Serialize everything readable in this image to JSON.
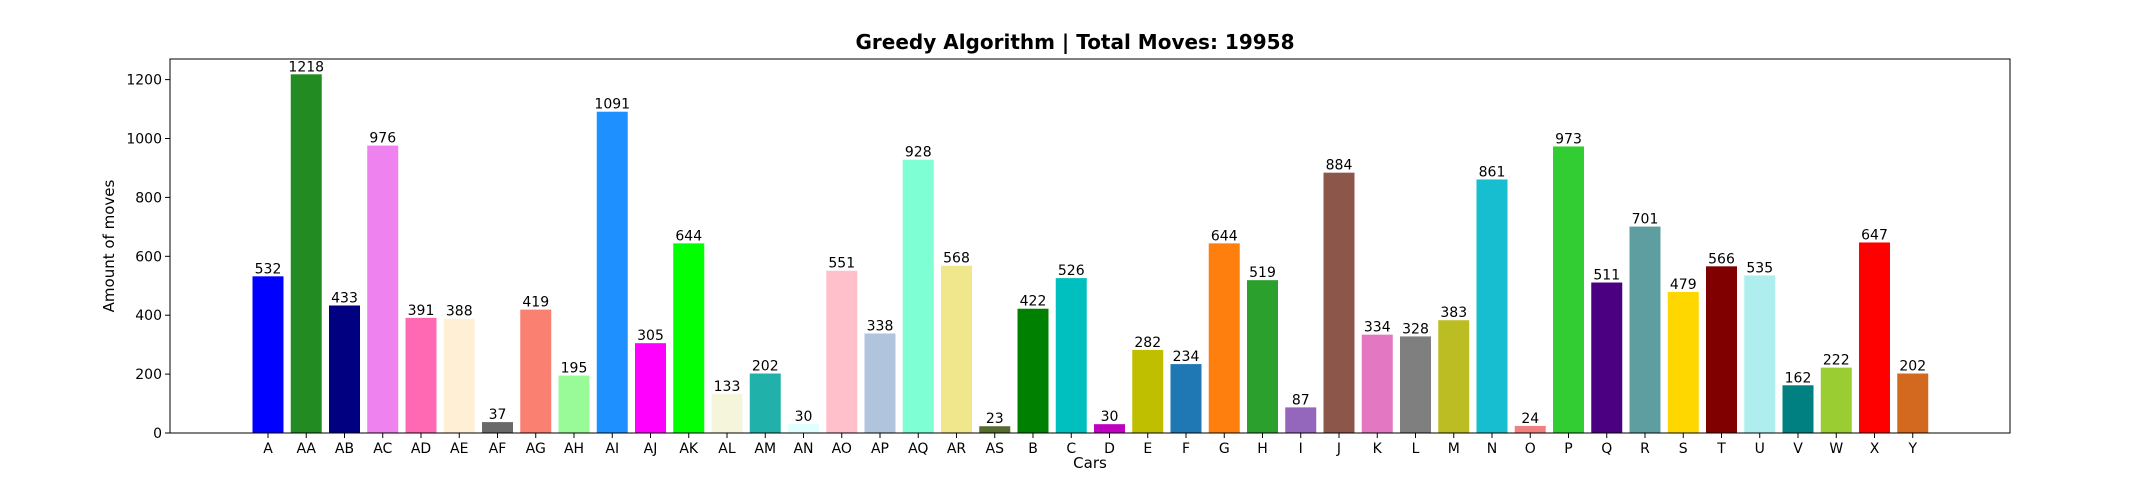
{
  "chart_data": {
    "type": "bar",
    "title": "Greedy Algorithm | Total Moves: 19958",
    "xlabel": "Cars",
    "ylabel": "Amount of moves",
    "ylim": [
      0,
      1270
    ],
    "yticks": [
      0,
      200,
      400,
      600,
      800,
      1000,
      1200
    ],
    "grid": false,
    "categories": [
      "A",
      "AA",
      "AB",
      "AC",
      "AD",
      "AE",
      "AF",
      "AG",
      "AH",
      "AI",
      "AJ",
      "AK",
      "AL",
      "AM",
      "AN",
      "AO",
      "AP",
      "AQ",
      "AR",
      "AS",
      "B",
      "C",
      "D",
      "E",
      "F",
      "G",
      "H",
      "I",
      "J",
      "K",
      "L",
      "M",
      "N",
      "O",
      "P",
      "Q",
      "R",
      "S",
      "T",
      "U",
      "V",
      "W",
      "X",
      "Y"
    ],
    "values": [
      532,
      1218,
      433,
      976,
      391,
      388,
      37,
      419,
      195,
      1091,
      305,
      644,
      133,
      202,
      30,
      551,
      338,
      928,
      568,
      23,
      422,
      526,
      30,
      282,
      234,
      644,
      519,
      87,
      884,
      334,
      328,
      383,
      861,
      24,
      973,
      511,
      701,
      479,
      566,
      535,
      162,
      222,
      647,
      202
    ],
    "colors": [
      "#0000ff",
      "#228b22",
      "#000080",
      "#ee82ee",
      "#ff69b4",
      "#ffefd5",
      "#696969",
      "#fa8072",
      "#98fb98",
      "#1e90ff",
      "#ff00ff",
      "#00ff00",
      "#f5f5dc",
      "#20b2aa",
      "#e0ffff",
      "#ffc0cb",
      "#b0c4de",
      "#7fffd4",
      "#f0e68c",
      "#556b2f",
      "#008000",
      "#00bfbf",
      "#bf00bf",
      "#bfbf00",
      "#1f77b4",
      "#ff7f0e",
      "#2ca02c",
      "#9467bd",
      "#8c564b",
      "#e377c2",
      "#7f7f7f",
      "#bcbd22",
      "#17becf",
      "#f08080",
      "#32cd32",
      "#4b0082",
      "#5f9ea0",
      "#ffd700",
      "#800000",
      "#afeeee",
      "#008080",
      "#9acd32",
      "#ff0000",
      "#d2691e"
    ]
  }
}
